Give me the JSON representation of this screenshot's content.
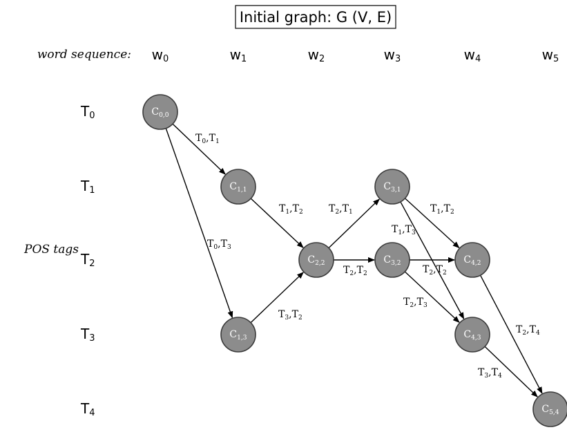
{
  "title": "Initial graph: G (V, E)",
  "word_sequence_label": "word sequence:",
  "pos_tags_label": "POS tags",
  "words": [
    {
      "base": "w",
      "sub": "0"
    },
    {
      "base": "w",
      "sub": "1"
    },
    {
      "base": "w",
      "sub": "2"
    },
    {
      "base": "w",
      "sub": "3"
    },
    {
      "base": "w",
      "sub": "4"
    },
    {
      "base": "w",
      "sub": "5"
    }
  ],
  "tags": [
    {
      "base": "T",
      "sub": "0"
    },
    {
      "base": "T",
      "sub": "1"
    },
    {
      "base": "T",
      "sub": "2"
    },
    {
      "base": "T",
      "sub": "3"
    },
    {
      "base": "T",
      "sub": "4"
    }
  ],
  "nodes": [
    {
      "id": "c00",
      "base": "C",
      "sub": "0,0",
      "word": 0,
      "tag": 0
    },
    {
      "id": "c11",
      "base": "C",
      "sub": "1,1",
      "word": 1,
      "tag": 1
    },
    {
      "id": "c13",
      "base": "C",
      "sub": "1,3",
      "word": 1,
      "tag": 3
    },
    {
      "id": "c22",
      "base": "C",
      "sub": "2,2",
      "word": 2,
      "tag": 2
    },
    {
      "id": "c31",
      "base": "C",
      "sub": "3,1",
      "word": 3,
      "tag": 1
    },
    {
      "id": "c32",
      "base": "C",
      "sub": "3,2",
      "word": 3,
      "tag": 2
    },
    {
      "id": "c42",
      "base": "C",
      "sub": "4,2",
      "word": 4,
      "tag": 2
    },
    {
      "id": "c43",
      "base": "C",
      "sub": "4,3",
      "word": 4,
      "tag": 3
    },
    {
      "id": "c54",
      "base": "C",
      "sub": "5,4",
      "word": 5,
      "tag": 4
    }
  ],
  "edges": [
    {
      "from": "c00",
      "to": "c11",
      "label": [
        "T",
        "0",
        ",T",
        "1"
      ]
    },
    {
      "from": "c00",
      "to": "c13",
      "label": [
        "T",
        "0",
        ",T",
        "3"
      ]
    },
    {
      "from": "c11",
      "to": "c22",
      "label": [
        "T",
        "1",
        ",T",
        "2"
      ]
    },
    {
      "from": "c13",
      "to": "c22",
      "label": [
        "T",
        "3",
        ",T",
        "2"
      ]
    },
    {
      "from": "c22",
      "to": "c31",
      "label": [
        "T",
        "2",
        ",T",
        "1"
      ]
    },
    {
      "from": "c22",
      "to": "c32",
      "label": [
        "T",
        "2",
        ",T",
        "2"
      ]
    },
    {
      "from": "c31",
      "to": "c42",
      "label": [
        "T",
        "1",
        ",T",
        "2"
      ]
    },
    {
      "from": "c31",
      "to": "c43",
      "label": [
        "T",
        "1",
        ",T",
        "3"
      ]
    },
    {
      "from": "c32",
      "to": "c42",
      "label": [
        "T",
        "2",
        ",T",
        "2"
      ]
    },
    {
      "from": "c32",
      "to": "c43",
      "label": [
        "T",
        "2",
        ",T",
        "3"
      ]
    },
    {
      "from": "c42",
      "to": "c54",
      "label": [
        "T",
        "2",
        ",T",
        "4"
      ]
    },
    {
      "from": "c43",
      "to": "c54",
      "label": [
        "T",
        "3",
        ",T",
        "4"
      ]
    }
  ]
}
